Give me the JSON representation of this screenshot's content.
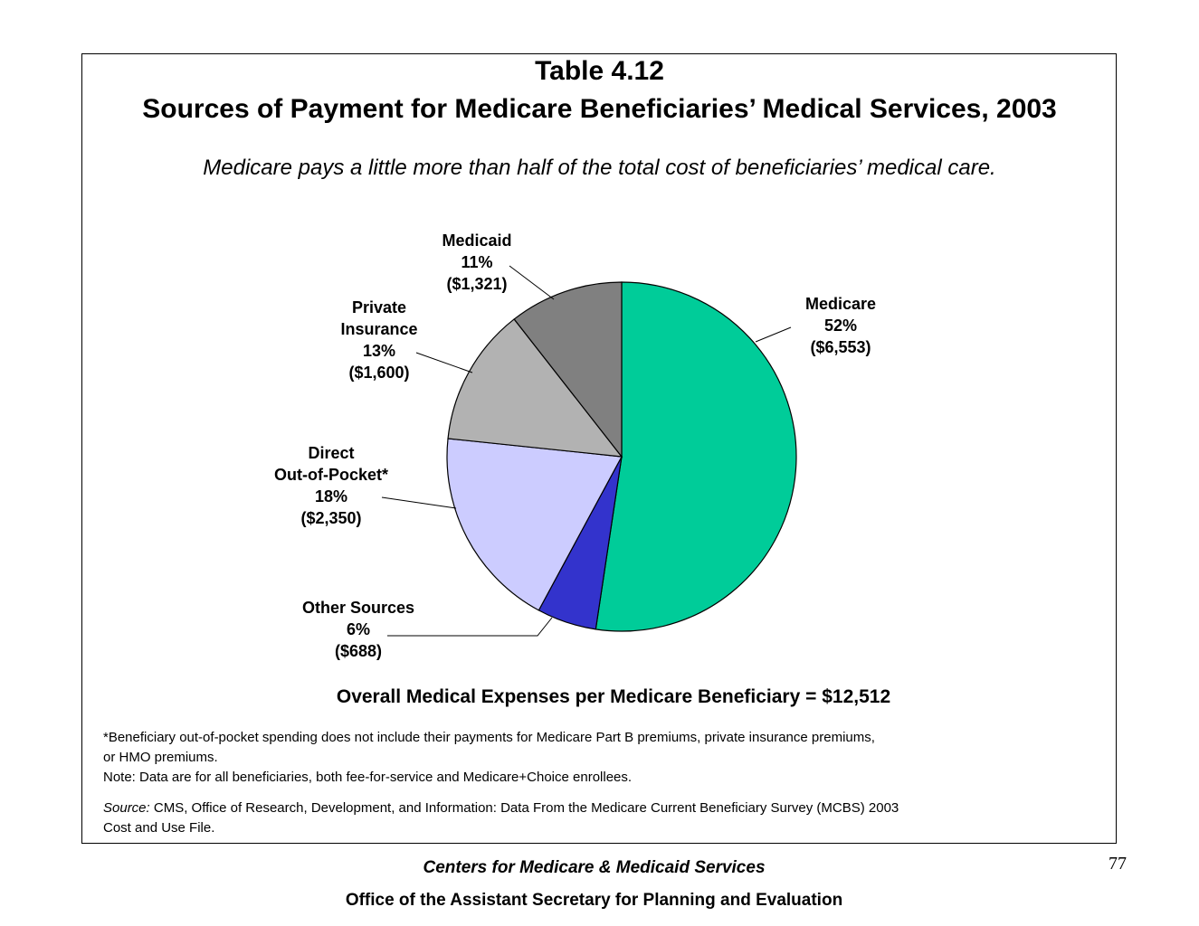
{
  "header": {
    "title_line1": "Table 4.12",
    "title_line2": "Sources of Payment for Medicare Beneficiaries’ Medical Services, 2003",
    "subtitle": "Medicare pays a little more than half of the total cost of beneficiaries’ medical care."
  },
  "chart_data": {
    "type": "pie",
    "title": "Sources of Payment for Medicare Beneficiaries’ Medical Services, 2003",
    "slices": [
      {
        "name": "Medicare",
        "percent": 52,
        "percent_label": "52%",
        "amount_label": "($6,553)",
        "value": 6553,
        "color": "#00cc99"
      },
      {
        "name": "Other Sources",
        "percent": 6,
        "percent_label": "6%",
        "amount_label": "($688)",
        "value": 688,
        "color": "#3333cc"
      },
      {
        "name": "Direct Out-of-Pocket*",
        "name_lines": [
          "Direct",
          "Out-of-Pocket*"
        ],
        "percent": 18,
        "percent_label": "18%",
        "amount_label": "($2,350)",
        "value": 2350,
        "color": "#ccccff"
      },
      {
        "name": "Private Insurance",
        "name_lines": [
          "Private",
          "Insurance"
        ],
        "percent": 13,
        "percent_label": "13%",
        "amount_label": "($1,600)",
        "value": 1600,
        "color": "#b2b2b2"
      },
      {
        "name": "Medicaid",
        "percent": 11,
        "percent_label": "11%",
        "amount_label": "($1,321)",
        "value": 1321,
        "color": "#808080"
      }
    ]
  },
  "labels": {
    "medicare": {
      "name": "Medicare",
      "pct": "52%",
      "amt": "($6,553)"
    },
    "medicaid": {
      "name": "Medicaid",
      "pct": "11%",
      "amt": "($1,321)"
    },
    "private": {
      "name1": "Private",
      "name2": "Insurance",
      "pct": "13%",
      "amt": "($1,600)"
    },
    "direct": {
      "name1": "Direct",
      "name2": "Out-of-Pocket*",
      "pct": "18%",
      "amt": "($2,350)"
    },
    "other": {
      "name": "Other Sources",
      "pct": "6%",
      "amt": "($688)"
    }
  },
  "overall": "Overall Medical Expenses per Medicare Beneficiary = $12,512",
  "notes": {
    "line1": "*Beneficiary out-of-pocket spending does not include their payments for Medicare Part B premiums, private insurance premiums,",
    "line2": "or HMO premiums.",
    "line3": "Note: Data are for all beneficiaries, both fee-for-service and Medicare+Choice enrollees."
  },
  "source": {
    "label": "Source:",
    "text1": " CMS, Office of Research, Development, and Information: Data From the Medicare Current Beneficiary Survey (MCBS) 2003",
    "text2": "Cost and Use File."
  },
  "page_number": "77",
  "footer": {
    "line1": "Centers for Medicare & Medicaid Services",
    "line2": "Office of the Assistant Secretary for Planning and Evaluation"
  }
}
